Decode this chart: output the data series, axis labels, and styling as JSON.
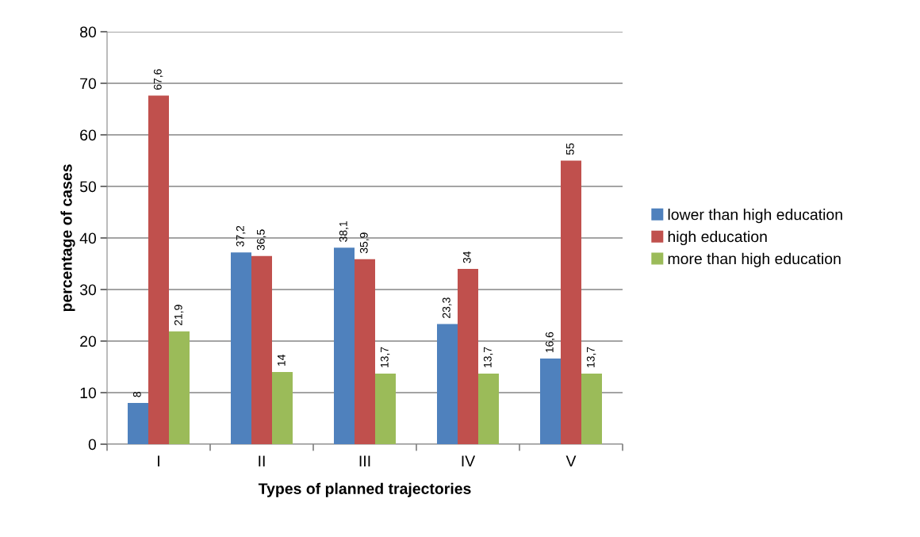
{
  "chart_data": {
    "type": "bar",
    "xlabel": "Types of planned trajectories",
    "ylabel": "percentage of cases",
    "categories": [
      "I",
      "II",
      "III",
      "IV",
      "V"
    ],
    "series": [
      {
        "name": "lower than high education",
        "color": "#4f81bd",
        "values": [
          8,
          37.2,
          38.1,
          23.3,
          16.6
        ],
        "value_labels": [
          "8",
          "37,2",
          "38,1",
          "23,3",
          "16,6"
        ]
      },
      {
        "name": "high education",
        "color": "#c0504d",
        "values": [
          67.6,
          36.5,
          35.9,
          34,
          55
        ],
        "value_labels": [
          "67,6",
          "36,5",
          "35,9",
          "34",
          "55"
        ]
      },
      {
        "name": "more than high education",
        "color": "#9bbb59",
        "values": [
          21.9,
          14,
          13.7,
          13.7,
          13.7
        ],
        "value_labels": [
          "21,9",
          "14",
          "13,7",
          "13,7",
          "13,7"
        ]
      }
    ],
    "ylim": [
      0,
      80
    ],
    "yticks": [
      0,
      10,
      20,
      30,
      40,
      50,
      60,
      70,
      80
    ],
    "grid": "y",
    "legend": "right"
  }
}
